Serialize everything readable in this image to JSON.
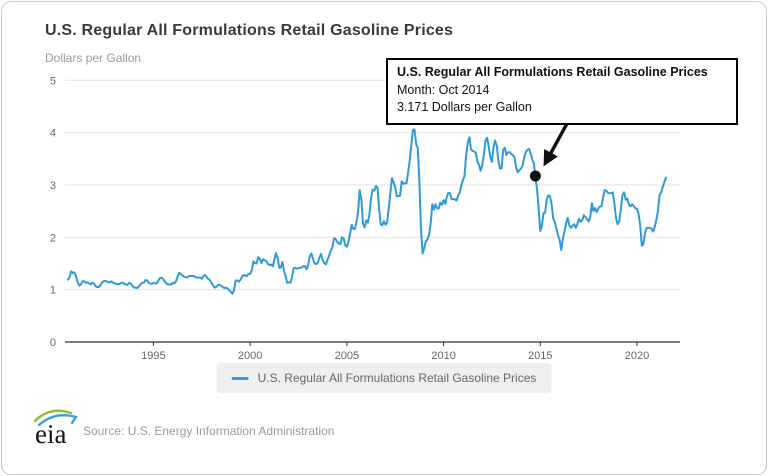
{
  "header": {
    "title": "U.S. Regular All Formulations Retail Gasoline Prices",
    "subtitle": "Dollars per Gallon"
  },
  "tooltip": {
    "title": "U.S. Regular All Formulations Retail Gasoline Prices",
    "line1": "Month: Oct 2014",
    "line2": "3.171 Dollars per Gallon"
  },
  "legend": {
    "label": "U.S. Regular All Formulations Retail Gasoline Prices",
    "swatch_color": "#2E9BD5"
  },
  "footer": {
    "logo_text": "eia",
    "source": "Source: U.S. Energy Information Administration"
  },
  "colors": {
    "line": "#2E9BD5",
    "gridline": "#e4e4e4",
    "axis": "#333333",
    "tick_label": "#666666",
    "annotation": "#111111",
    "legend_bg": "#efefef"
  },
  "chart_data": {
    "type": "line",
    "title": "U.S. Regular All Formulations Retail Gasoline Prices",
    "ylabel": "Dollars per Gallon",
    "xlabel": "",
    "ylim": [
      0,
      5
    ],
    "y_ticks": [
      0,
      1,
      2,
      3,
      4,
      5
    ],
    "x_ticks": [
      1995,
      2000,
      2005,
      2010,
      2015,
      2020
    ],
    "grid": "horizontal-only",
    "legend_position": "bottom-center",
    "frequency": "monthly",
    "start_year": 1990,
    "start_month": 8,
    "line_color": "#2E9BD5",
    "values": [
      1.19,
      1.24,
      1.35,
      1.32,
      1.33,
      1.25,
      1.14,
      1.08,
      1.1,
      1.16,
      1.16,
      1.13,
      1.14,
      1.12,
      1.1,
      1.13,
      1.12,
      1.07,
      1.05,
      1.05,
      1.08,
      1.13,
      1.16,
      1.17,
      1.16,
      1.14,
      1.14,
      1.16,
      1.13,
      1.12,
      1.11,
      1.1,
      1.11,
      1.13,
      1.13,
      1.11,
      1.1,
      1.09,
      1.13,
      1.12,
      1.07,
      1.04,
      1.04,
      1.03,
      1.06,
      1.1,
      1.13,
      1.13,
      1.18,
      1.18,
      1.13,
      1.12,
      1.11,
      1.13,
      1.12,
      1.12,
      1.17,
      1.22,
      1.23,
      1.2,
      1.16,
      1.12,
      1.1,
      1.1,
      1.1,
      1.13,
      1.12,
      1.16,
      1.25,
      1.32,
      1.3,
      1.27,
      1.25,
      1.24,
      1.23,
      1.26,
      1.26,
      1.26,
      1.26,
      1.24,
      1.23,
      1.23,
      1.23,
      1.21,
      1.26,
      1.28,
      1.24,
      1.21,
      1.18,
      1.13,
      1.08,
      1.04,
      1.05,
      1.09,
      1.09,
      1.08,
      1.05,
      1.03,
      1.04,
      1.02,
      0.99,
      0.96,
      0.92,
      0.99,
      1.17,
      1.18,
      1.15,
      1.19,
      1.25,
      1.28,
      1.27,
      1.26,
      1.3,
      1.3,
      1.37,
      1.54,
      1.51,
      1.5,
      1.62,
      1.59,
      1.51,
      1.58,
      1.56,
      1.55,
      1.49,
      1.47,
      1.48,
      1.45,
      1.56,
      1.7,
      1.62,
      1.42,
      1.42,
      1.53,
      1.36,
      1.26,
      1.13,
      1.14,
      1.13,
      1.24,
      1.41,
      1.42,
      1.4,
      1.41,
      1.42,
      1.42,
      1.45,
      1.45,
      1.39,
      1.47,
      1.64,
      1.69,
      1.59,
      1.5,
      1.49,
      1.51,
      1.62,
      1.68,
      1.56,
      1.51,
      1.48,
      1.57,
      1.65,
      1.74,
      1.8,
      1.98,
      1.97,
      1.91,
      1.88,
      1.87,
      2.0,
      1.98,
      1.85,
      1.82,
      1.92,
      2.07,
      2.24,
      2.16,
      2.16,
      2.29,
      2.49,
      2.9,
      2.72,
      2.26,
      2.19,
      2.32,
      2.28,
      2.43,
      2.74,
      2.91,
      2.89,
      2.98,
      2.95,
      2.56,
      2.25,
      2.23,
      2.31,
      2.24,
      2.28,
      2.56,
      2.86,
      3.13,
      3.05,
      2.96,
      2.78,
      2.79,
      2.79,
      3.07,
      3.02,
      3.04,
      3.03,
      3.24,
      3.46,
      3.76,
      4.05,
      4.06,
      3.78,
      3.7,
      3.05,
      2.15,
      1.69,
      1.79,
      1.92,
      1.96,
      2.05,
      2.27,
      2.63,
      2.53,
      2.63,
      2.55,
      2.55,
      2.66,
      2.62,
      2.71,
      2.64,
      2.77,
      2.85,
      2.84,
      2.73,
      2.73,
      2.73,
      2.7,
      2.8,
      2.85,
      2.99,
      3.09,
      3.17,
      3.56,
      3.8,
      3.91,
      3.68,
      3.65,
      3.64,
      3.61,
      3.45,
      3.38,
      3.27,
      3.38,
      3.58,
      3.85,
      3.9,
      3.73,
      3.54,
      3.44,
      3.72,
      3.85,
      3.75,
      3.45,
      3.31,
      3.32,
      3.67,
      3.71,
      3.57,
      3.62,
      3.63,
      3.59,
      3.57,
      3.53,
      3.34,
      3.24,
      3.28,
      3.31,
      3.36,
      3.53,
      3.63,
      3.67,
      3.69,
      3.61,
      3.49,
      3.41,
      3.171,
      2.91,
      2.54,
      2.12,
      2.22,
      2.46,
      2.47,
      2.72,
      2.8,
      2.79,
      2.64,
      2.36,
      2.29,
      2.16,
      2.04,
      1.95,
      1.76,
      1.97,
      2.11,
      2.27,
      2.37,
      2.23,
      2.18,
      2.22,
      2.25,
      2.18,
      2.25,
      2.35,
      2.3,
      2.32,
      2.42,
      2.39,
      2.35,
      2.3,
      2.38,
      2.65,
      2.5,
      2.56,
      2.48,
      2.55,
      2.59,
      2.59,
      2.76,
      2.9,
      2.89,
      2.85,
      2.84,
      2.84,
      2.86,
      2.65,
      2.37,
      2.25,
      2.31,
      2.55,
      2.81,
      2.86,
      2.72,
      2.74,
      2.62,
      2.59,
      2.63,
      2.6,
      2.55,
      2.55,
      2.44,
      2.23,
      1.84,
      1.87,
      2.08,
      2.18,
      2.18,
      2.18,
      2.16,
      2.11,
      2.2,
      2.33,
      2.5,
      2.81,
      2.86,
      2.96,
      3.06,
      3.14
    ],
    "highlight": {
      "index": 290,
      "month_label": "Oct 2014",
      "value": 3.171
    }
  }
}
